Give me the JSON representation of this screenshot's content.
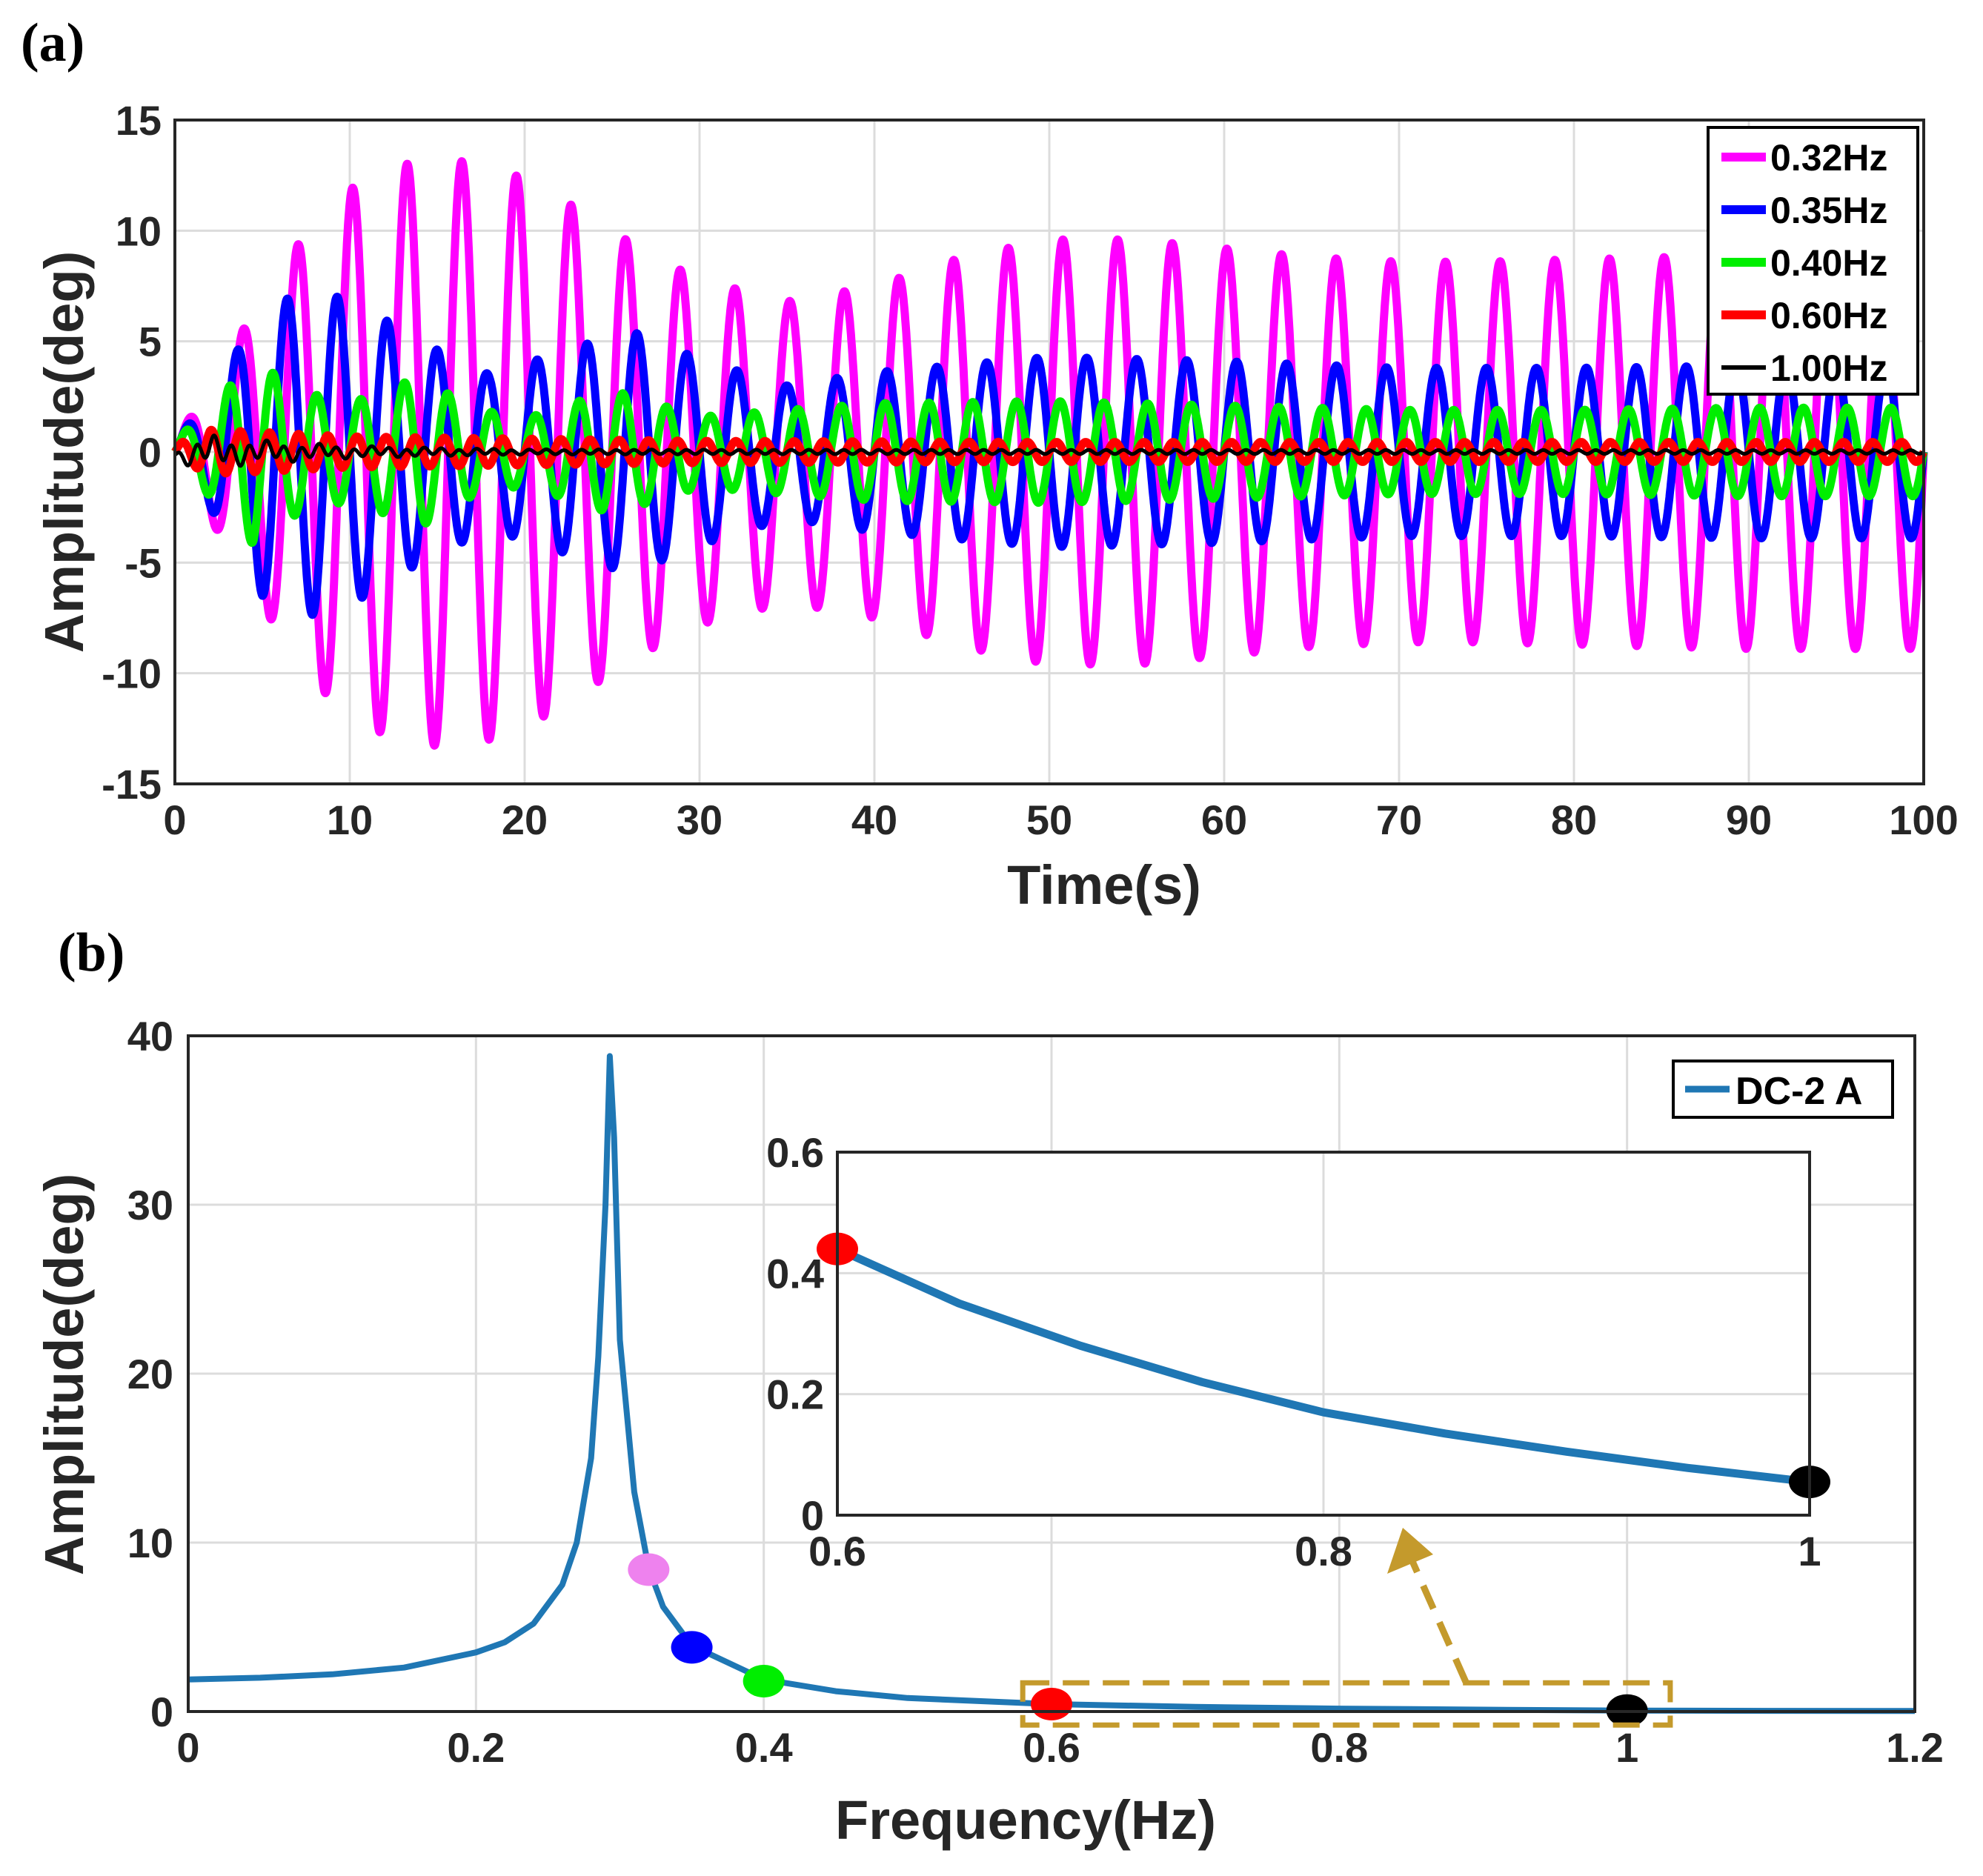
{
  "chart_data": [
    {
      "panel_label": "(a)",
      "type": "line",
      "title": "",
      "xlabel": "Time(s)",
      "ylabel": "Amplitude(deg)",
      "xlim": [
        0,
        100
      ],
      "ylim": [
        -15,
        15
      ],
      "xticks": [
        "0",
        "10",
        "20",
        "30",
        "40",
        "50",
        "60",
        "70",
        "80",
        "90",
        "100"
      ],
      "yticks": [
        "15",
        "10",
        "5",
        "0",
        "-5",
        "-10",
        "-15"
      ],
      "grid": true,
      "legend_position": "top-right",
      "series": [
        {
          "name": "0.32Hz",
          "color": "#ff00ff",
          "frequency_hz": 0.32,
          "envelope_t": [
            0,
            2,
            5,
            8,
            11,
            14.5,
            18,
            21,
            24,
            27,
            30,
            35,
            40,
            45,
            50,
            55,
            60,
            65,
            70,
            75,
            80,
            85,
            90,
            95,
            100
          ],
          "envelope_amp": [
            0.5,
            3,
            7,
            10.5,
            12.5,
            13.3,
            13,
            12,
            10.5,
            9,
            7.8,
            6.8,
            7.5,
            8.8,
            9.6,
            9.6,
            9.2,
            8.8,
            8.6,
            8.6,
            8.7,
            8.8,
            8.9,
            8.9,
            8.9
          ]
        },
        {
          "name": "0.35Hz",
          "color": "#0000ff",
          "frequency_hz": 0.35,
          "envelope_t": [
            0,
            2,
            5,
            8,
            11,
            14,
            18,
            22,
            26,
            30,
            35,
            40,
            50,
            60,
            70,
            80,
            90,
            100
          ],
          "envelope_amp": [
            0.5,
            2.5,
            6.5,
            7.4,
            6.5,
            5,
            3.5,
            4.5,
            5.5,
            4.2,
            3,
            3.6,
            4.3,
            4.1,
            3.8,
            3.8,
            3.9,
            3.9
          ]
        },
        {
          "name": "0.40Hz",
          "color": "#00ee00",
          "frequency_hz": 0.4,
          "envelope_t": [
            0,
            2,
            4.5,
            7,
            10,
            14,
            17,
            20,
            25,
            30,
            40,
            50,
            60,
            70,
            80,
            90,
            100
          ],
          "envelope_amp": [
            0.5,
            2,
            4.2,
            2.8,
            2.2,
            3.4,
            2,
            1.5,
            2.8,
            1.6,
            2.2,
            2.3,
            2.1,
            1.9,
            1.9,
            2,
            2
          ]
        },
        {
          "name": "0.60Hz",
          "color": "#ff0000",
          "frequency_hz": 0.6,
          "envelope_t": [
            0,
            2,
            5,
            10,
            20,
            30,
            50,
            100
          ],
          "envelope_amp": [
            0.3,
            1,
            0.9,
            0.7,
            0.6,
            0.5,
            0.45,
            0.45
          ]
        },
        {
          "name": "1.00Hz",
          "color": "#000000",
          "frequency_hz": 1.0,
          "envelope_t": [
            0,
            2,
            5,
            10,
            20,
            100
          ],
          "envelope_amp": [
            0.2,
            0.5,
            0.35,
            0.2,
            0.1,
            0.08
          ]
        }
      ]
    },
    {
      "panel_label": "(b)",
      "type": "line",
      "title": "",
      "xlabel": "Frequency(Hz)",
      "ylabel": "Amplitude(deg)",
      "xlim": [
        0,
        1.2
      ],
      "ylim": [
        0,
        40
      ],
      "xticks": [
        "0",
        "0.2",
        "0.4",
        "0.6",
        "0.8",
        "1",
        "1.2"
      ],
      "yticks": [
        "40",
        "30",
        "20",
        "10",
        "0"
      ],
      "grid": true,
      "legend_position": "top-right",
      "series": [
        {
          "name": "DC-2 A",
          "color": "#1f77b4",
          "x": [
            0,
            0.05,
            0.1,
            0.15,
            0.2,
            0.22,
            0.24,
            0.26,
            0.27,
            0.28,
            0.285,
            0.29,
            0.293,
            0.296,
            0.3,
            0.31,
            0.32,
            0.33,
            0.35,
            0.4,
            0.45,
            0.5,
            0.6,
            0.7,
            0.8,
            0.9,
            1.0,
            1.1,
            1.2
          ],
          "y": [
            1.9,
            2.0,
            2.2,
            2.6,
            3.5,
            4.1,
            5.2,
            7.5,
            10,
            15,
            21,
            30,
            38.8,
            34,
            22,
            13,
            8.5,
            6.2,
            3.9,
            1.9,
            1.2,
            0.8,
            0.44,
            0.27,
            0.17,
            0.11,
            0.055,
            0.04,
            0.03
          ]
        }
      ],
      "markers": [
        {
          "x": 0.32,
          "y": 8.4,
          "color": "#ee82ee"
        },
        {
          "x": 0.35,
          "y": 3.8,
          "color": "#0000ff"
        },
        {
          "x": 0.4,
          "y": 1.8,
          "color": "#00ee00"
        },
        {
          "x": 0.6,
          "y": 0.44,
          "color": "#ff0000"
        },
        {
          "x": 1.0,
          "y": 0.055,
          "color": "#000000"
        }
      ],
      "highlight_box": {
        "x_range": [
          0.58,
          1.03
        ],
        "y_range": [
          -0.8,
          1.7
        ],
        "color": "#c49a2c"
      },
      "inset": {
        "xlim": [
          0.6,
          1.0
        ],
        "ylim": [
          0,
          0.6
        ],
        "xticks": [
          "0.6",
          "0.8",
          "1"
        ],
        "yticks": [
          "0.6",
          "0.4",
          "0.2",
          "0"
        ],
        "x": [
          0.6,
          0.65,
          0.7,
          0.75,
          0.8,
          0.85,
          0.9,
          0.95,
          1.0
        ],
        "y": [
          0.44,
          0.35,
          0.28,
          0.22,
          0.17,
          0.135,
          0.105,
          0.078,
          0.055
        ],
        "markers": [
          {
            "x": 0.6,
            "y": 0.44,
            "color": "#ff0000"
          },
          {
            "x": 1.0,
            "y": 0.055,
            "color": "#000000"
          }
        ]
      }
    }
  ]
}
